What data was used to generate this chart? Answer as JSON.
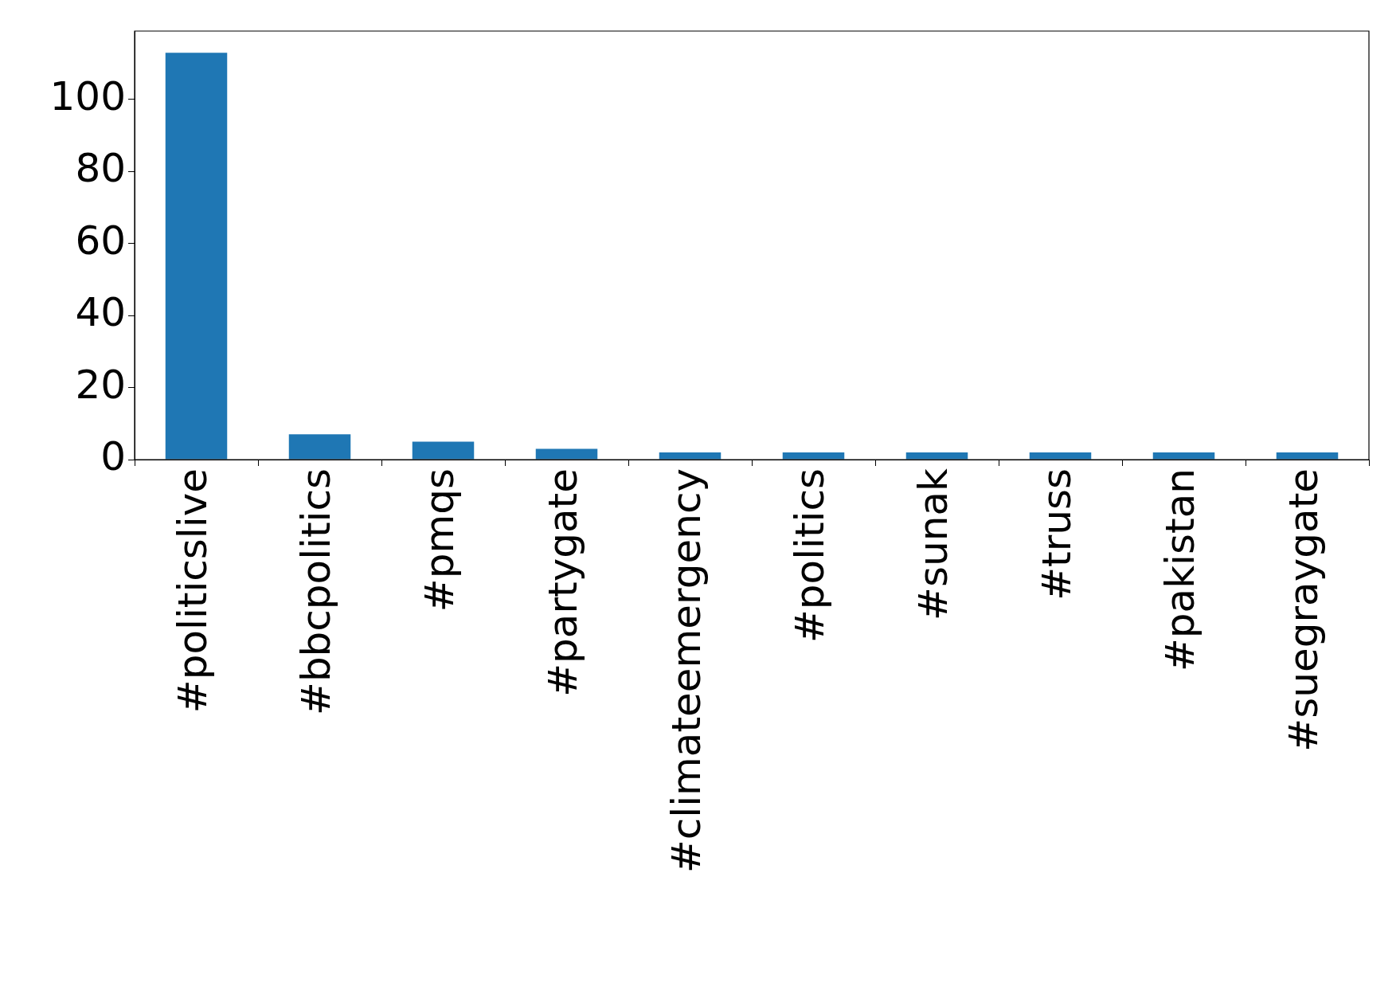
{
  "chart_data": {
    "type": "bar",
    "categories": [
      "#politicslive",
      "#bbcpolitics",
      "#pmqs",
      "#partygate",
      "#climateemergency",
      "#politics",
      "#sunak",
      "#truss",
      "#pakistan",
      "#suegraygate"
    ],
    "values": [
      113,
      7,
      5,
      3,
      2,
      2,
      2,
      2,
      2,
      2
    ],
    "color": "#1f77b4",
    "ylim": [
      0,
      119
    ],
    "yticks": [
      0,
      20,
      40,
      60,
      80,
      100
    ],
    "grid": false,
    "legend": false
  }
}
